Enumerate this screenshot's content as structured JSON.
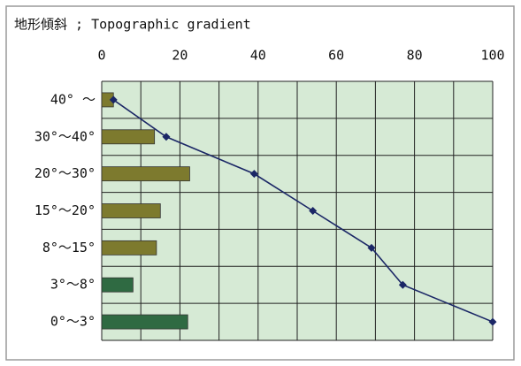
{
  "chart_data": {
    "type": "bar",
    "title": "地形傾斜 ; Topographic gradient",
    "categories": [
      "40° ～",
      "30°～40°",
      "20°～30°",
      "15°～20°",
      "8°～15°",
      "3°～8°",
      "0°～3°"
    ],
    "series": [
      {
        "type": "bar",
        "values": [
          3,
          13.5,
          22.5,
          15,
          14,
          8,
          22
        ],
        "colors": [
          "#7d7a2e",
          "#7d7a2e",
          "#7d7a2e",
          "#7d7a2e",
          "#7d7a2e",
          "#2f6a42",
          "#2f6a42"
        ]
      },
      {
        "type": "line",
        "values": [
          3,
          16.5,
          39,
          54,
          69,
          77,
          100
        ],
        "color": "#1b2766"
      }
    ],
    "xlim": [
      0,
      100
    ],
    "xticks": [
      0,
      20,
      40,
      60,
      80,
      100
    ],
    "xgrid": [
      0,
      10,
      20,
      30,
      40,
      50,
      60,
      70,
      80,
      90,
      100
    ],
    "grid": true,
    "plot_color": "#d6ead5"
  }
}
